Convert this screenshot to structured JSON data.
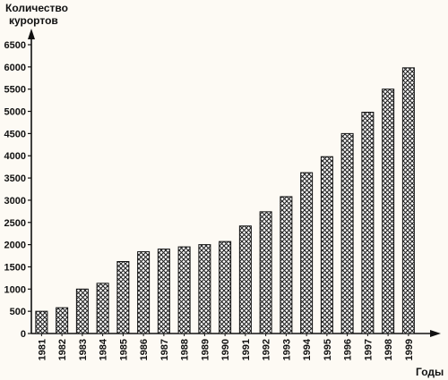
{
  "chart_data": {
    "type": "bar",
    "ylabel_lines": [
      "Количество",
      "курортов"
    ],
    "xlabel": "Годы",
    "categories": [
      "1981",
      "1982",
      "1983",
      "1984",
      "1985",
      "1986",
      "1987",
      "1988",
      "1989",
      "1990",
      "1991",
      "1992",
      "1993",
      "1994",
      "1995",
      "1996",
      "1997",
      "1998",
      "1999"
    ],
    "values": [
      500,
      580,
      1000,
      1130,
      1620,
      1840,
      1900,
      1950,
      2000,
      2070,
      2420,
      2740,
      3080,
      3620,
      3980,
      4500,
      4980,
      5500,
      5980
    ],
    "ylim": [
      0,
      6500
    ],
    "yticks": [
      "0",
      "500",
      "1000",
      "1500",
      "2000",
      "2500",
      "3000",
      "3500",
      "4000",
      "4500",
      "5000",
      "5500",
      "6000",
      "6500"
    ],
    "grid": false,
    "bar_pattern": "crosshatch",
    "colors": {
      "bar_fill": "#ffffff",
      "bar_hatch": "#222222",
      "axis": "#111111"
    }
  }
}
